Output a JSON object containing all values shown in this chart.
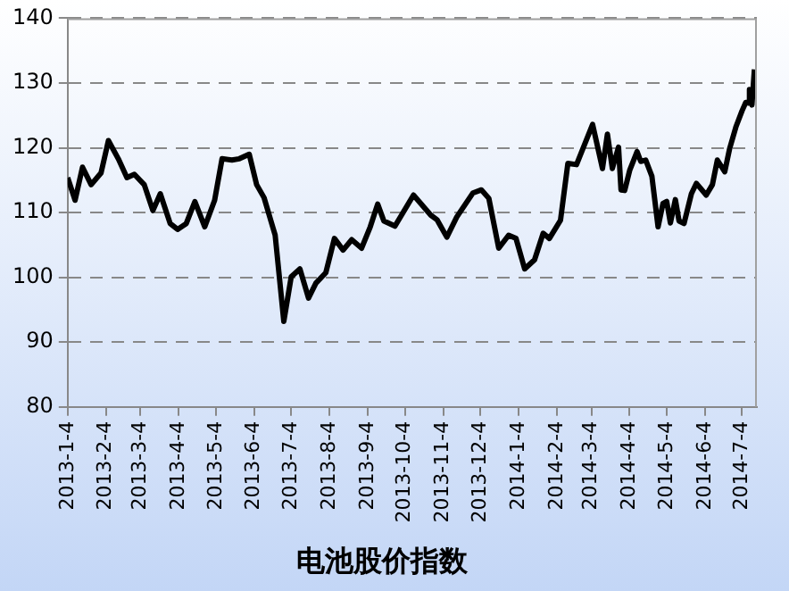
{
  "chart_data": {
    "type": "line",
    "title": "电池股价指数",
    "grid": "y",
    "legend": false,
    "marker": "none",
    "line_style": "solid",
    "xlim": [
      "2013-01-04",
      "2014-07-16"
    ],
    "xticks": [
      {
        "value": "2013-01-04",
        "label": "2013-1-4"
      },
      {
        "value": "2013-02-04",
        "label": "2013-2-4"
      },
      {
        "value": "2013-03-04",
        "label": "2013-3-4"
      },
      {
        "value": "2013-04-04",
        "label": "2013-4-4"
      },
      {
        "value": "2013-05-04",
        "label": "2013-5-4"
      },
      {
        "value": "2013-06-04",
        "label": "2013-6-4"
      },
      {
        "value": "2013-07-04",
        "label": "2013-7-4"
      },
      {
        "value": "2013-08-04",
        "label": "2013-8-4"
      },
      {
        "value": "2013-09-04",
        "label": "2013-9-4"
      },
      {
        "value": "2013-10-04",
        "label": "2013-10-4"
      },
      {
        "value": "2013-11-04",
        "label": "2013-11-4"
      },
      {
        "value": "2013-12-04",
        "label": "2013-12-4"
      },
      {
        "value": "2014-01-04",
        "label": "2014-1-4"
      },
      {
        "value": "2014-02-04",
        "label": "2014-2-4"
      },
      {
        "value": "2014-03-04",
        "label": "2014-3-4"
      },
      {
        "value": "2014-04-04",
        "label": "2014-4-4"
      },
      {
        "value": "2014-05-04",
        "label": "2014-5-4"
      },
      {
        "value": "2014-06-04",
        "label": "2014-6-4"
      },
      {
        "value": "2014-07-04",
        "label": "2014-7-4"
      }
    ],
    "ylim": [
      80,
      140
    ],
    "yticks": [
      80,
      90,
      100,
      110,
      120,
      130,
      140
    ],
    "x": [
      "2013-01-04",
      "2013-01-10",
      "2013-01-16",
      "2013-01-23",
      "2013-01-31",
      "2013-02-06",
      "2013-02-14",
      "2013-02-21",
      "2013-02-27",
      "2013-03-07",
      "2013-03-14",
      "2013-03-20",
      "2013-03-28",
      "2013-04-03",
      "2013-04-10",
      "2013-04-17",
      "2013-04-25",
      "2013-05-03",
      "2013-05-09",
      "2013-05-17",
      "2013-05-23",
      "2013-05-31",
      "2013-06-06",
      "2013-06-12",
      "2013-06-21",
      "2013-06-28",
      "2013-07-04",
      "2013-07-11",
      "2013-07-18",
      "2013-07-24",
      "2013-08-01",
      "2013-08-08",
      "2013-08-15",
      "2013-08-22",
      "2013-08-30",
      "2013-09-06",
      "2013-09-12",
      "2013-09-17",
      "2013-09-26",
      "2013-10-11",
      "2013-10-25",
      "2013-10-30",
      "2013-11-07",
      "2013-11-15",
      "2013-11-28",
      "2013-12-05",
      "2013-12-11",
      "2013-12-19",
      "2013-12-27",
      "2014-01-02",
      "2014-01-09",
      "2014-01-17",
      "2014-01-24",
      "2014-01-29",
      "2014-02-07",
      "2014-02-13",
      "2014-02-20",
      "2014-03-05",
      "2014-03-13",
      "2014-03-17",
      "2014-03-21",
      "2014-03-26",
      "2014-03-28",
      "2014-03-31",
      "2014-04-04",
      "2014-04-10",
      "2014-04-13",
      "2014-04-17",
      "2014-04-22",
      "2014-04-27",
      "2014-05-01",
      "2014-05-04",
      "2014-05-07",
      "2014-05-11",
      "2014-05-14",
      "2014-05-18",
      "2014-05-24",
      "2014-05-28",
      "2014-06-05",
      "2014-06-10",
      "2014-06-14",
      "2014-06-20",
      "2014-06-24",
      "2014-06-29",
      "2014-07-04",
      "2014-07-07",
      "2014-07-09",
      "2014-07-10",
      "2014-07-12",
      "2014-07-14"
    ],
    "series": [
      {
        "color": "#000000",
        "values": [
          115.4,
          111.9,
          117.0,
          114.3,
          116.1,
          121.1,
          118.3,
          115.4,
          115.9,
          114.3,
          110.3,
          112.9,
          108.3,
          107.4,
          108.3,
          111.7,
          107.8,
          111.9,
          118.3,
          118.1,
          118.3,
          119.0,
          114.3,
          112.3,
          106.5,
          93.2,
          100.1,
          101.3,
          96.8,
          99.1,
          100.7,
          106.0,
          104.2,
          105.8,
          104.5,
          107.8,
          111.3,
          108.7,
          107.9,
          112.7,
          109.6,
          108.9,
          106.2,
          109.3,
          113.0,
          113.5,
          112.2,
          104.5,
          106.5,
          106.0,
          101.3,
          102.7,
          106.8,
          106.0,
          108.8,
          117.6,
          117.4,
          123.6,
          116.8,
          122.1,
          116.8,
          120.1,
          113.5,
          113.4,
          116.5,
          119.4,
          117.9,
          118.1,
          115.6,
          107.8,
          111.4,
          111.7,
          108.4,
          112.0,
          108.7,
          108.3,
          112.9,
          114.5,
          112.7,
          114.3,
          118.1,
          116.3,
          119.9,
          123.2,
          125.7,
          127.0,
          126.9,
          129.0,
          126.6,
          132.1
        ]
      }
    ]
  }
}
